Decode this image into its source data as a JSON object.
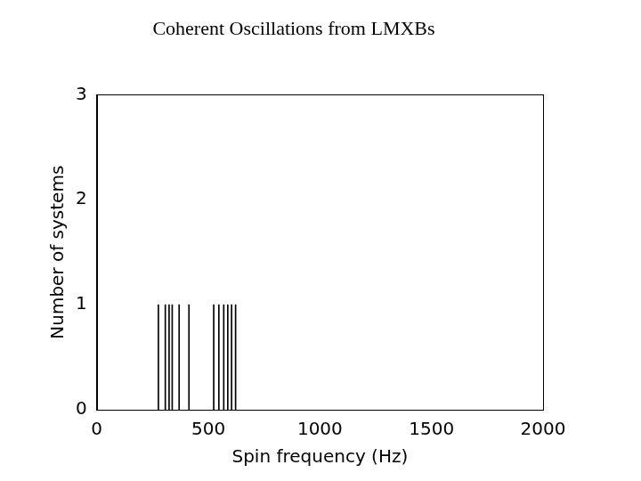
{
  "chart_data": {
    "type": "bar",
    "title": "Coherent Oscillations from LMXBs",
    "x_label": "Spin frequency (Hz)",
    "y_label": "Number of systems",
    "x": [
      276,
      307,
      324,
      338,
      369,
      413,
      524,
      547,
      569,
      587,
      604,
      622
    ],
    "values": [
      1,
      1,
      1,
      1,
      1,
      1,
      1,
      1,
      1,
      1,
      1,
      1
    ],
    "color": "#000000",
    "xlim": [
      0,
      2000
    ],
    "xticks": [
      0,
      500,
      1000,
      1500,
      2000
    ],
    "ylim": [
      0,
      3
    ],
    "yticks": [
      0,
      1,
      2,
      3
    ],
    "grid": false
  }
}
